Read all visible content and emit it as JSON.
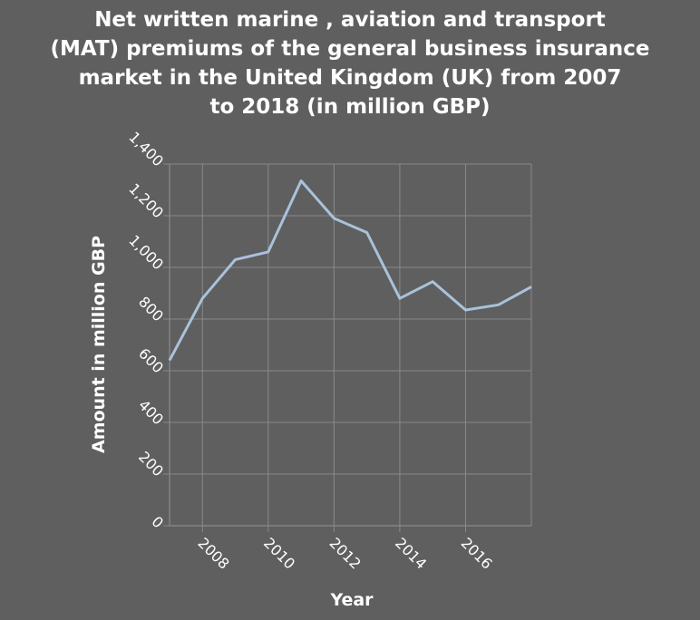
{
  "chart_data": {
    "type": "line",
    "title_lines": [
      "Net written marine , aviation and transport",
      "(MAT) premiums of the general business insurance",
      "market in the United Kingdom (UK) from 2007",
      "to 2018 (in million GBP)"
    ],
    "xlabel": "Year",
    "ylabel": "Amount in million GBP",
    "x_ticks": [
      2008,
      2010,
      2012,
      2014,
      2016
    ],
    "y_ticks": [
      0,
      200,
      400,
      600,
      800,
      1000,
      1200,
      1400
    ],
    "y_tick_labels": [
      "0",
      "200",
      "400",
      "600",
      "800",
      "1,000",
      "1,200",
      "1,400"
    ],
    "xlim": [
      2007,
      2018
    ],
    "ylim": [
      0,
      1400
    ],
    "grid": true,
    "series": [
      {
        "x": [
          2007,
          2008,
          2009,
          2010,
          2011,
          2012,
          2013,
          2014,
          2015,
          2016,
          2017,
          2018
        ],
        "values": [
          640,
          880,
          1030,
          1060,
          1335,
          1190,
          1135,
          880,
          945,
          835,
          855,
          925
        ]
      }
    ],
    "colors": {
      "background": "#5f5f5f",
      "grid": "#8a8a8a",
      "line": "#a9c2dc",
      "text": "#ffffff"
    }
  }
}
